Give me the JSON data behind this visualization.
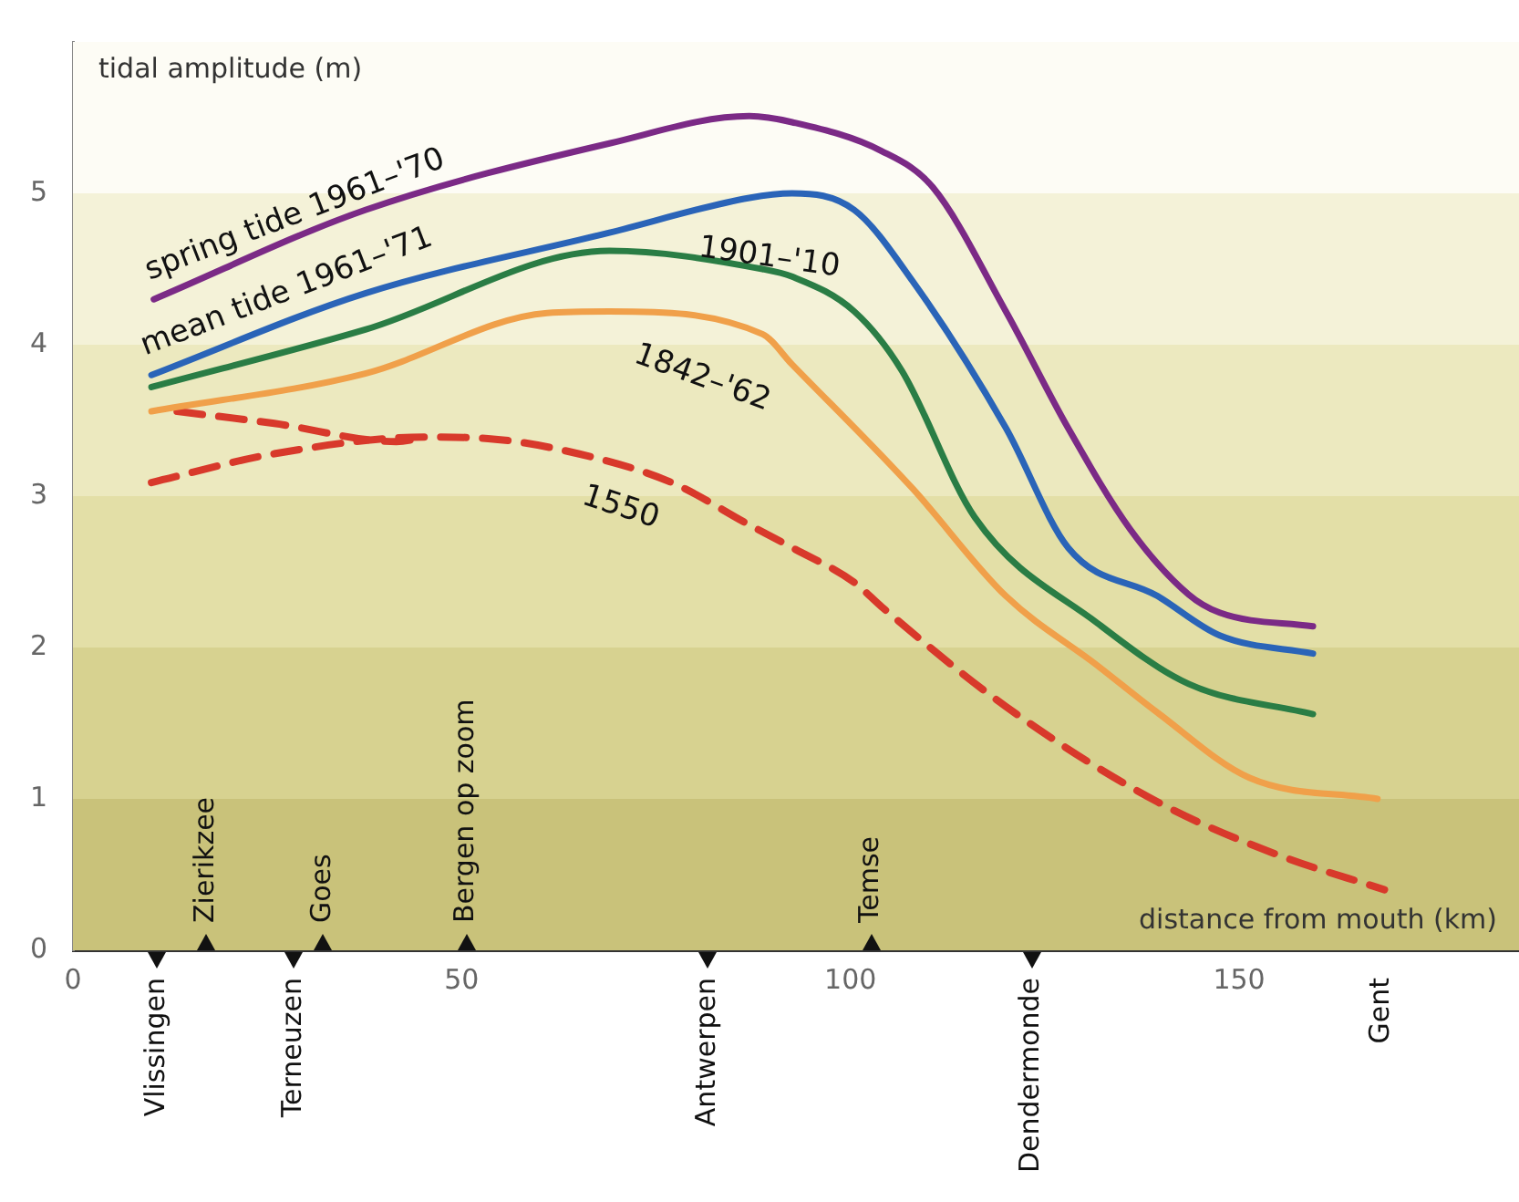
{
  "chart_data": {
    "type": "line",
    "xlabel": "distance from mouth (km)",
    "ylabel": "tidal amplitude (m)",
    "xlim": [
      0,
      186
    ],
    "xticks": [
      0,
      50,
      100,
      150
    ],
    "ylim": [
      0,
      6
    ],
    "yticks": [
      0,
      1,
      2,
      3,
      4,
      5
    ],
    "legend": false,
    "marker": "none",
    "bands": [
      {
        "axis": "y",
        "from": 0,
        "to": 1,
        "color": "#c9c27a"
      },
      {
        "axis": "y",
        "from": 1,
        "to": 2,
        "color": "#d7d290"
      },
      {
        "axis": "y",
        "from": 2,
        "to": 3,
        "color": "#e3dfa7"
      },
      {
        "axis": "y",
        "from": 3,
        "to": 4,
        "color": "#ece9bf"
      },
      {
        "axis": "y",
        "from": 4,
        "to": 5,
        "color": "#f4f2d8"
      },
      {
        "axis": "y",
        "from": 5,
        "to": 6,
        "color": "#fdfcf5"
      }
    ],
    "series": [
      {
        "name": "spring tide 1961–'70",
        "color": "#7b2a86",
        "line_style": "solid",
        "x": [
          10.4,
          37.6,
          69,
          87,
          92.5,
          104,
          110.6,
          120,
          128,
          136,
          143.5,
          147.5,
          159.5
        ],
        "values": [
          4.3,
          4.89,
          5.33,
          5.51,
          5.47,
          5.28,
          5.04,
          4.22,
          3.45,
          2.78,
          2.35,
          2.23,
          2.14
        ]
      },
      {
        "name": "mean tide 1961–'71",
        "color": "#2a64b8",
        "line_style": "solid",
        "x": [
          10.1,
          37.6,
          69,
          87,
          92.5,
          100.5,
          108,
          120,
          128,
          139.5,
          147.5,
          159.5
        ],
        "values": [
          3.8,
          4.34,
          4.74,
          4.97,
          5.0,
          4.89,
          4.42,
          3.45,
          2.66,
          2.34,
          2.08,
          1.96
        ]
      },
      {
        "name": "1901–'10",
        "color": "#2a7d45",
        "line_style": "solid",
        "x": [
          10.1,
          37.6,
          69,
          88.7,
          92.5,
          100.5,
          106.6,
          116,
          131.8,
          143.5,
          159.5
        ],
        "values": [
          3.72,
          4.1,
          4.62,
          4.5,
          4.45,
          4.22,
          3.83,
          2.86,
          2.16,
          1.76,
          1.56
        ]
      },
      {
        "name": "1842–'62",
        "color": "#f0a04a",
        "line_style": "solid",
        "x": [
          10.1,
          37.6,
          61,
          69,
          88.7,
          92.5,
          108,
          120,
          131.8,
          139.5,
          151.3,
          167.8
        ],
        "values": [
          3.56,
          3.81,
          4.21,
          4.22,
          4.07,
          3.87,
          3.05,
          2.34,
          1.88,
          1.57,
          1.14,
          1.0
        ]
      },
      {
        "name": "1550",
        "color": "#d8392b",
        "line_style": "dashed",
        "x": [
          10.1,
          25.9,
          45.4,
          53.4,
          65,
          77,
          87,
          92.5,
          100.5,
          104,
          120,
          139.5,
          155,
          168.7
        ],
        "values": [
          3.09,
          3.28,
          3.39,
          3.38,
          3.28,
          3.09,
          2.81,
          2.66,
          2.43,
          2.27,
          1.61,
          0.98,
          0.63,
          0.4
        ]
      },
      {
        "color": "#d8392b",
        "line_style": "dashed",
        "x": [
          13.4,
          25.9,
          41.6,
          45.4
        ],
        "values": [
          3.56,
          3.48,
          3.36,
          3.39
        ]
      }
    ],
    "annotations": [
      "Vlissingen",
      "Zierikzee",
      "Terneuzen",
      "Goes",
      "Bergen op zoom",
      "Antwerpen",
      "Temse",
      "Dendermonde",
      "Gent"
    ]
  }
}
